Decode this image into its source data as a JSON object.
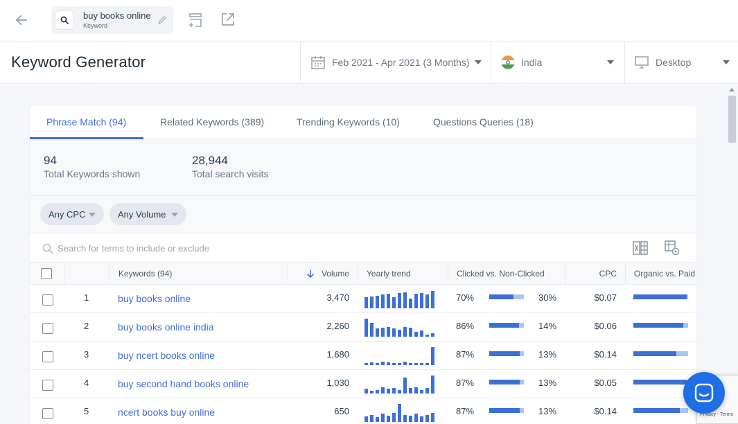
{
  "topbar": {
    "keyword_chip": {
      "keyword": "buy books online",
      "type_label": "Keyword"
    }
  },
  "header": {
    "title": "Keyword Generator",
    "date_range": "Feb 2021 - Apr 2021 (3 Months)",
    "country": "India",
    "device": "Desktop"
  },
  "tabs": [
    {
      "label": "Phrase Match (94)",
      "active": true
    },
    {
      "label": "Related Keywords (389)",
      "active": false
    },
    {
      "label": "Trending Keywords (10)",
      "active": false
    },
    {
      "label": "Questions Queries (18)",
      "active": false
    }
  ],
  "stats": [
    {
      "value": "94",
      "label": "Total Keywords shown"
    },
    {
      "value": "28,944",
      "label": "Total search visits"
    }
  ],
  "filters": [
    {
      "label": "Any CPC"
    },
    {
      "label": "Any Volume"
    }
  ],
  "search": {
    "placeholder": "Search for terms to include or exclude"
  },
  "table": {
    "columns": {
      "keywords": "Keywords (94)",
      "volume": "Volume",
      "trend": "Yearly trend",
      "clicked": "Clicked vs. Non-Clicked",
      "cpc": "CPC",
      "organic": "Organic vs. Paid"
    },
    "rows": [
      {
        "num": "1",
        "keyword": "buy books online",
        "volume": "3,470",
        "clicked": "70%",
        "nonclicked": "30%",
        "cpc": "$0.07",
        "trend": [
          0.6,
          0.65,
          0.7,
          0.75,
          0.8,
          0.6,
          0.85,
          0.9,
          0.55,
          0.8,
          0.85,
          0.75,
          0.95
        ],
        "organic": 0.97
      },
      {
        "num": "2",
        "keyword": "buy books online india",
        "volume": "2,260",
        "clicked": "86%",
        "nonclicked": "14%",
        "cpc": "$0.06",
        "trend": [
          1.0,
          0.75,
          0.45,
          0.5,
          0.55,
          0.45,
          0.4,
          0.55,
          0.5,
          0.25,
          0.35,
          0.1,
          0.2
        ],
        "organic": 0.91
      },
      {
        "num": "3",
        "keyword": "buy ncert books online",
        "volume": "1,680",
        "clicked": "87%",
        "nonclicked": "13%",
        "cpc": "$0.14",
        "trend": [
          0.1,
          0.15,
          0.12,
          0.2,
          0.15,
          0.1,
          0.12,
          0.18,
          0.1,
          0.12,
          0.1,
          0.1,
          1.0
        ],
        "organic": 0.79
      },
      {
        "num": "4",
        "keyword": "buy second hand books online",
        "volume": "1,030",
        "clicked": "87%",
        "nonclicked": "13%",
        "cpc": "$0.05",
        "trend": [
          0.25,
          0.15,
          0.2,
          0.35,
          0.25,
          0.3,
          0.2,
          0.9,
          0.3,
          0.35,
          0.2,
          0.3,
          1.0
        ],
        "organic": 0.98
      },
      {
        "num": "5",
        "keyword": "ncert books buy online",
        "volume": "650",
        "clicked": "87%",
        "nonclicked": "13%",
        "cpc": "$0.14",
        "trend": [
          0.3,
          0.4,
          0.25,
          0.45,
          0.35,
          0.5,
          1.0,
          0.4,
          0.35,
          0.45,
          0.3,
          0.4,
          0.5
        ],
        "organic": 0.85
      }
    ]
  },
  "colors": {
    "accent": "#3d6fd9",
    "bar_light": "#a9c5f3",
    "chat": "#1f6ee6"
  },
  "recaptcha_text": "Privacy - Terms"
}
